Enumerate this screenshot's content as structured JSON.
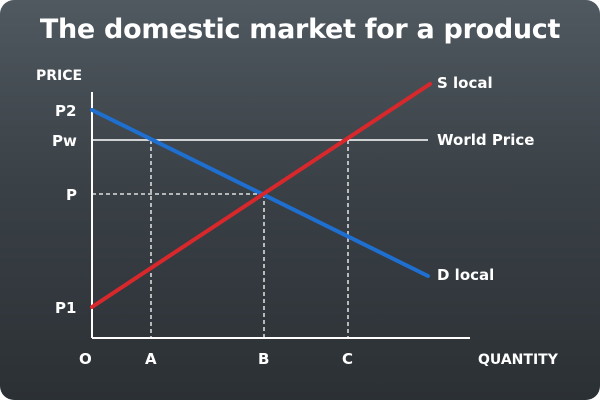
{
  "title": "The domestic market for a product",
  "axes": {
    "y_label": "PRICE",
    "x_label": "QUANTITY",
    "origin_label": "O"
  },
  "price_labels": {
    "p2": "P2",
    "pw": "Pw",
    "p": "P",
    "p1": "P1"
  },
  "quantity_labels": {
    "a": "A",
    "b": "B",
    "c": "C"
  },
  "curves": {
    "supply_label": "S local",
    "demand_label": "D local",
    "world_price_label": "World Price"
  },
  "colors": {
    "supply": "#d8282c",
    "demand": "#1e6fd0",
    "world_price": "#ffffff",
    "background_top": "#505960",
    "background_bottom": "#2b3034"
  }
}
